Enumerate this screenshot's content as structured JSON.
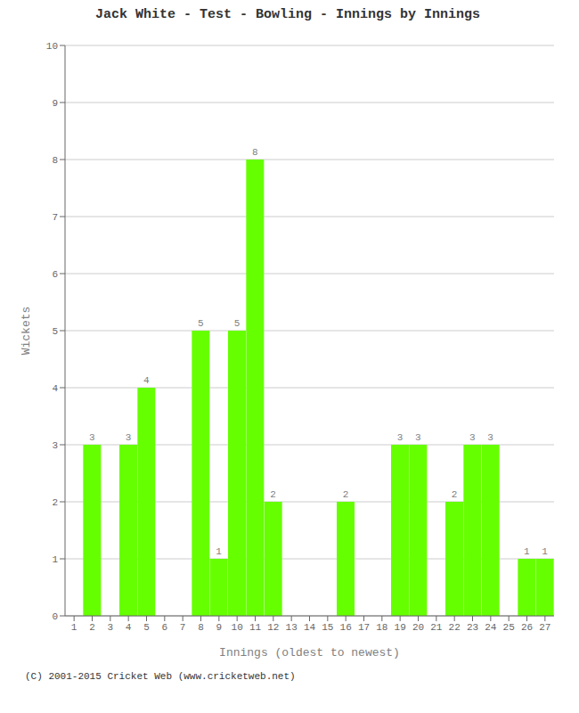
{
  "chart_data": {
    "type": "bar",
    "title": "Jack White - Test - Bowling - Innings by Innings",
    "x_label": "Innings (oldest to newest)",
    "y_label": "Wickets",
    "annotations": [
      "(C) 2001-2015 Cricket Web (www.cricketweb.net)"
    ],
    "categories": [
      "1",
      "2",
      "3",
      "4",
      "5",
      "6",
      "7",
      "8",
      "9",
      "10",
      "11",
      "12",
      "13",
      "14",
      "15",
      "16",
      "17",
      "18",
      "19",
      "20",
      "21",
      "22",
      "23",
      "24",
      "25",
      "26",
      "27"
    ],
    "values": [
      0,
      3,
      0,
      3,
      4,
      0,
      0,
      5,
      1,
      5,
      8,
      2,
      0,
      0,
      0,
      2,
      0,
      0,
      3,
      3,
      0,
      2,
      3,
      3,
      0,
      1,
      1
    ],
    "color": "#66ff00",
    "ylim": [
      0,
      10
    ],
    "yticks": [
      0,
      1,
      2,
      3,
      4,
      5,
      6,
      7,
      8,
      9,
      10
    ],
    "grid": true,
    "data_labels": true
  }
}
